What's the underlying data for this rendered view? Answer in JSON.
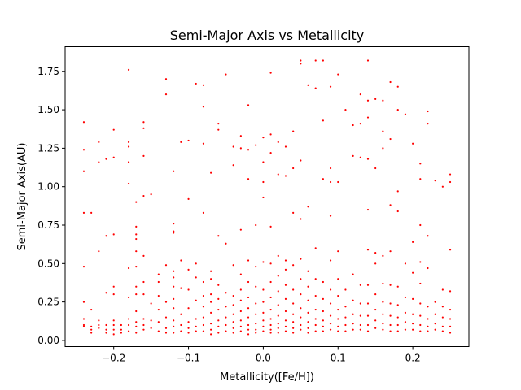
{
  "chart_data": {
    "type": "scatter",
    "title": "Semi-Major Axis vs Metallicity",
    "xlabel": "Metallicity([Fe/H])",
    "ylabel": "Semi-Major Axis(AU)",
    "xlim": [
      -0.265,
      0.275
    ],
    "ylim": [
      -0.04,
      1.91
    ],
    "xticks": [
      -0.2,
      -0.1,
      0.0,
      0.1,
      0.2
    ],
    "xtick_labels": [
      "−0.2",
      "−0.1",
      "0.0",
      "0.1",
      "0.2"
    ],
    "yticks": [
      0.0,
      0.25,
      0.5,
      0.75,
      1.0,
      1.25,
      1.5,
      1.75
    ],
    "ytick_labels": [
      "0.00",
      "0.25",
      "0.50",
      "0.75",
      "1.00",
      "1.25",
      "1.50",
      "1.75"
    ],
    "grid": false,
    "marker_color": "#ff0000",
    "points": [
      [
        -0.24,
        1.42
      ],
      [
        -0.24,
        1.24
      ],
      [
        -0.24,
        1.1
      ],
      [
        -0.24,
        0.83
      ],
      [
        -0.24,
        0.48
      ],
      [
        -0.24,
        0.25
      ],
      [
        -0.24,
        0.14
      ],
      [
        -0.24,
        0.1
      ],
      [
        -0.24,
        0.09
      ],
      [
        -0.23,
        0.83
      ],
      [
        -0.23,
        0.2
      ],
      [
        -0.23,
        0.09
      ],
      [
        -0.23,
        0.07
      ],
      [
        -0.23,
        0.05
      ],
      [
        -0.22,
        1.29
      ],
      [
        -0.22,
        1.16
      ],
      [
        -0.22,
        0.58
      ],
      [
        -0.22,
        0.13
      ],
      [
        -0.22,
        0.1
      ],
      [
        -0.22,
        0.08
      ],
      [
        -0.21,
        1.18
      ],
      [
        -0.21,
        0.68
      ],
      [
        -0.21,
        0.31
      ],
      [
        -0.21,
        0.1
      ],
      [
        -0.21,
        0.07
      ],
      [
        -0.21,
        0.05
      ],
      [
        -0.2,
        1.37
      ],
      [
        -0.2,
        1.19
      ],
      [
        -0.2,
        0.69
      ],
      [
        -0.2,
        0.35
      ],
      [
        -0.2,
        0.3
      ],
      [
        -0.2,
        0.13
      ],
      [
        -0.2,
        0.1
      ],
      [
        -0.2,
        0.07
      ],
      [
        -0.2,
        0.04
      ],
      [
        -0.19,
        0.1
      ],
      [
        -0.19,
        0.07
      ],
      [
        -0.19,
        0.05
      ],
      [
        -0.18,
        1.76
      ],
      [
        -0.18,
        1.29
      ],
      [
        -0.18,
        1.26
      ],
      [
        -0.18,
        1.16
      ],
      [
        -0.18,
        1.02
      ],
      [
        -0.18,
        0.47
      ],
      [
        -0.18,
        0.28
      ],
      [
        -0.18,
        0.14
      ],
      [
        -0.18,
        0.1
      ],
      [
        -0.18,
        0.06
      ],
      [
        -0.17,
        0.9
      ],
      [
        -0.17,
        0.74
      ],
      [
        -0.17,
        0.69
      ],
      [
        -0.17,
        0.66
      ],
      [
        -0.17,
        0.58
      ],
      [
        -0.17,
        0.48
      ],
      [
        -0.17,
        0.35
      ],
      [
        -0.17,
        0.3
      ],
      [
        -0.17,
        0.19
      ],
      [
        -0.17,
        0.12
      ],
      [
        -0.17,
        0.09
      ],
      [
        -0.17,
        0.05
      ],
      [
        -0.16,
        1.42
      ],
      [
        -0.16,
        1.38
      ],
      [
        -0.16,
        1.2
      ],
      [
        -0.16,
        0.94
      ],
      [
        -0.16,
        0.55
      ],
      [
        -0.16,
        0.38
      ],
      [
        -0.16,
        0.3
      ],
      [
        -0.16,
        0.14
      ],
      [
        -0.16,
        0.1
      ],
      [
        -0.16,
        0.07
      ],
      [
        -0.15,
        0.95
      ],
      [
        -0.15,
        0.24
      ],
      [
        -0.15,
        0.13
      ],
      [
        -0.15,
        0.08
      ],
      [
        -0.14,
        0.43
      ],
      [
        -0.14,
        0.38
      ],
      [
        -0.14,
        0.29
      ],
      [
        -0.14,
        0.2
      ],
      [
        -0.14,
        0.12
      ],
      [
        -0.14,
        0.06
      ],
      [
        -0.13,
        1.7
      ],
      [
        -0.13,
        1.6
      ],
      [
        -0.13,
        0.49
      ],
      [
        -0.13,
        0.25
      ],
      [
        -0.13,
        0.15
      ],
      [
        -0.13,
        0.08
      ],
      [
        -0.13,
        0.05
      ],
      [
        -0.12,
        1.1
      ],
      [
        -0.12,
        0.76
      ],
      [
        -0.12,
        0.71
      ],
      [
        -0.12,
        0.7
      ],
      [
        -0.12,
        0.45
      ],
      [
        -0.12,
        0.41
      ],
      [
        -0.12,
        0.35
      ],
      [
        -0.12,
        0.27
      ],
      [
        -0.12,
        0.21
      ],
      [
        -0.12,
        0.13
      ],
      [
        -0.12,
        0.09
      ],
      [
        -0.12,
        0.05
      ],
      [
        -0.11,
        1.29
      ],
      [
        -0.11,
        0.52
      ],
      [
        -0.11,
        0.34
      ],
      [
        -0.11,
        0.17
      ],
      [
        -0.11,
        0.1
      ],
      [
        -0.11,
        0.06
      ],
      [
        -0.1,
        1.3
      ],
      [
        -0.1,
        0.92
      ],
      [
        -0.1,
        0.46
      ],
      [
        -0.1,
        0.33
      ],
      [
        -0.1,
        0.21
      ],
      [
        -0.1,
        0.12
      ],
      [
        -0.1,
        0.08
      ],
      [
        -0.1,
        0.05
      ],
      [
        -0.09,
        1.67
      ],
      [
        -0.09,
        0.5
      ],
      [
        -0.09,
        0.41
      ],
      [
        -0.09,
        0.26
      ],
      [
        -0.09,
        0.14
      ],
      [
        -0.09,
        0.09
      ],
      [
        -0.09,
        0.06
      ],
      [
        -0.08,
        1.66
      ],
      [
        -0.08,
        1.52
      ],
      [
        -0.08,
        1.28
      ],
      [
        -0.08,
        0.83
      ],
      [
        -0.08,
        0.38
      ],
      [
        -0.08,
        0.29
      ],
      [
        -0.08,
        0.22
      ],
      [
        -0.08,
        0.15
      ],
      [
        -0.08,
        0.1
      ],
      [
        -0.08,
        0.06
      ],
      [
        -0.07,
        1.09
      ],
      [
        -0.07,
        0.45
      ],
      [
        -0.07,
        0.4
      ],
      [
        -0.07,
        0.3
      ],
      [
        -0.07,
        0.25
      ],
      [
        -0.07,
        0.18
      ],
      [
        -0.07,
        0.11
      ],
      [
        -0.07,
        0.07
      ],
      [
        -0.07,
        0.04
      ],
      [
        -0.06,
        1.41
      ],
      [
        -0.06,
        1.37
      ],
      [
        -0.06,
        0.68
      ],
      [
        -0.06,
        0.36
      ],
      [
        -0.06,
        0.27
      ],
      [
        -0.06,
        0.2
      ],
      [
        -0.06,
        0.13
      ],
      [
        -0.06,
        0.09
      ],
      [
        -0.06,
        0.05
      ],
      [
        -0.05,
        1.73
      ],
      [
        -0.05,
        0.63
      ],
      [
        -0.05,
        0.31
      ],
      [
        -0.05,
        0.22
      ],
      [
        -0.05,
        0.15
      ],
      [
        -0.05,
        0.1
      ],
      [
        -0.05,
        0.06
      ],
      [
        -0.04,
        1.26
      ],
      [
        -0.04,
        1.14
      ],
      [
        -0.04,
        0.49
      ],
      [
        -0.04,
        0.29
      ],
      [
        -0.04,
        0.23
      ],
      [
        -0.04,
        0.17
      ],
      [
        -0.04,
        0.12
      ],
      [
        -0.04,
        0.08
      ],
      [
        -0.04,
        0.05
      ],
      [
        -0.03,
        1.33
      ],
      [
        -0.03,
        1.25
      ],
      [
        -0.03,
        0.72
      ],
      [
        -0.03,
        0.43
      ],
      [
        -0.03,
        0.33
      ],
      [
        -0.03,
        0.26
      ],
      [
        -0.03,
        0.19
      ],
      [
        -0.03,
        0.13
      ],
      [
        -0.03,
        0.09
      ],
      [
        -0.03,
        0.06
      ],
      [
        -0.02,
        1.53
      ],
      [
        -0.02,
        1.24
      ],
      [
        -0.02,
        1.05
      ],
      [
        -0.02,
        0.52
      ],
      [
        -0.02,
        0.38
      ],
      [
        -0.02,
        0.28
      ],
      [
        -0.02,
        0.21
      ],
      [
        -0.02,
        0.15
      ],
      [
        -0.02,
        0.1
      ],
      [
        -0.02,
        0.07
      ],
      [
        -0.02,
        0.04
      ],
      [
        -0.01,
        1.27
      ],
      [
        -0.01,
        0.75
      ],
      [
        -0.01,
        0.48
      ],
      [
        -0.01,
        0.35
      ],
      [
        -0.01,
        0.24
      ],
      [
        -0.01,
        0.17
      ],
      [
        -0.01,
        0.11
      ],
      [
        -0.01,
        0.07
      ],
      [
        -0.01,
        0.05
      ],
      [
        0.0,
        1.32
      ],
      [
        0.0,
        1.16
      ],
      [
        0.0,
        1.03
      ],
      [
        0.0,
        0.93
      ],
      [
        0.0,
        0.51
      ],
      [
        0.0,
        0.33
      ],
      [
        0.0,
        0.25
      ],
      [
        0.0,
        0.18
      ],
      [
        0.0,
        0.13
      ],
      [
        0.0,
        0.09
      ],
      [
        0.0,
        0.06
      ],
      [
        0.01,
        1.74
      ],
      [
        0.01,
        1.34
      ],
      [
        0.01,
        1.22
      ],
      [
        0.01,
        0.74
      ],
      [
        0.01,
        0.5
      ],
      [
        0.01,
        0.38
      ],
      [
        0.01,
        0.28
      ],
      [
        0.01,
        0.2
      ],
      [
        0.01,
        0.14
      ],
      [
        0.01,
        0.1
      ],
      [
        0.01,
        0.07
      ],
      [
        0.01,
        0.05
      ],
      [
        0.02,
        1.29
      ],
      [
        0.02,
        1.08
      ],
      [
        0.02,
        0.55
      ],
      [
        0.02,
        0.42
      ],
      [
        0.02,
        0.32
      ],
      [
        0.02,
        0.23
      ],
      [
        0.02,
        0.16
      ],
      [
        0.02,
        0.11
      ],
      [
        0.02,
        0.08
      ],
      [
        0.02,
        0.05
      ],
      [
        0.03,
        1.26
      ],
      [
        0.03,
        1.07
      ],
      [
        0.03,
        0.52
      ],
      [
        0.03,
        0.46
      ],
      [
        0.03,
        0.36
      ],
      [
        0.03,
        0.27
      ],
      [
        0.03,
        0.19
      ],
      [
        0.03,
        0.13
      ],
      [
        0.03,
        0.09
      ],
      [
        0.03,
        0.06
      ],
      [
        0.04,
        1.36
      ],
      [
        0.04,
        1.12
      ],
      [
        0.04,
        0.83
      ],
      [
        0.04,
        0.49
      ],
      [
        0.04,
        0.33
      ],
      [
        0.04,
        0.24
      ],
      [
        0.04,
        0.17
      ],
      [
        0.04,
        0.12
      ],
      [
        0.04,
        0.08
      ],
      [
        0.04,
        0.05
      ],
      [
        0.05,
        1.82
      ],
      [
        0.05,
        1.8
      ],
      [
        0.05,
        1.17
      ],
      [
        0.05,
        0.79
      ],
      [
        0.05,
        0.53
      ],
      [
        0.05,
        0.4
      ],
      [
        0.05,
        0.3
      ],
      [
        0.05,
        0.21
      ],
      [
        0.05,
        0.15
      ],
      [
        0.05,
        0.1
      ],
      [
        0.05,
        0.07
      ],
      [
        0.06,
        1.66
      ],
      [
        0.06,
        0.87
      ],
      [
        0.06,
        0.45
      ],
      [
        0.06,
        0.35
      ],
      [
        0.06,
        0.26
      ],
      [
        0.06,
        0.18
      ],
      [
        0.06,
        0.12
      ],
      [
        0.06,
        0.08
      ],
      [
        0.06,
        0.05
      ],
      [
        0.07,
        1.82
      ],
      [
        0.07,
        1.64
      ],
      [
        0.07,
        0.6
      ],
      [
        0.07,
        0.4
      ],
      [
        0.07,
        0.29
      ],
      [
        0.07,
        0.2
      ],
      [
        0.07,
        0.14
      ],
      [
        0.07,
        0.1
      ],
      [
        0.07,
        0.06
      ],
      [
        0.08,
        1.82
      ],
      [
        0.08,
        1.43
      ],
      [
        0.08,
        1.05
      ],
      [
        0.08,
        0.38
      ],
      [
        0.08,
        0.27
      ],
      [
        0.08,
        0.19
      ],
      [
        0.08,
        0.13
      ],
      [
        0.08,
        0.09
      ],
      [
        0.08,
        0.06
      ],
      [
        0.09,
        1.65
      ],
      [
        0.09,
        1.12
      ],
      [
        0.09,
        1.03
      ],
      [
        0.09,
        0.81
      ],
      [
        0.09,
        0.52
      ],
      [
        0.09,
        0.33
      ],
      [
        0.09,
        0.24
      ],
      [
        0.09,
        0.16
      ],
      [
        0.09,
        0.11
      ],
      [
        0.09,
        0.07
      ],
      [
        0.1,
        1.73
      ],
      [
        0.1,
        1.03
      ],
      [
        0.1,
        0.58
      ],
      [
        0.1,
        0.4
      ],
      [
        0.1,
        0.29
      ],
      [
        0.1,
        0.2
      ],
      [
        0.1,
        0.14
      ],
      [
        0.1,
        0.09
      ],
      [
        0.1,
        0.06
      ],
      [
        0.11,
        1.5
      ],
      [
        0.11,
        0.33
      ],
      [
        0.11,
        0.22
      ],
      [
        0.11,
        0.15
      ],
      [
        0.11,
        0.1
      ],
      [
        0.11,
        0.06
      ],
      [
        0.12,
        1.4
      ],
      [
        0.12,
        1.2
      ],
      [
        0.12,
        0.43
      ],
      [
        0.12,
        0.26
      ],
      [
        0.12,
        0.17
      ],
      [
        0.12,
        0.11
      ],
      [
        0.12,
        0.07
      ],
      [
        0.13,
        1.6
      ],
      [
        0.13,
        1.41
      ],
      [
        0.13,
        1.19
      ],
      [
        0.13,
        0.36
      ],
      [
        0.13,
        0.24
      ],
      [
        0.13,
        0.16
      ],
      [
        0.13,
        0.1
      ],
      [
        0.13,
        0.07
      ],
      [
        0.14,
        1.82
      ],
      [
        0.14,
        1.56
      ],
      [
        0.14,
        1.45
      ],
      [
        0.14,
        1.18
      ],
      [
        0.14,
        0.85
      ],
      [
        0.14,
        0.59
      ],
      [
        0.14,
        0.36
      ],
      [
        0.14,
        0.24
      ],
      [
        0.14,
        0.16
      ],
      [
        0.14,
        0.1
      ],
      [
        0.14,
        0.06
      ],
      [
        0.15,
        1.57
      ],
      [
        0.15,
        1.12
      ],
      [
        0.15,
        0.57
      ],
      [
        0.15,
        0.5
      ],
      [
        0.15,
        0.3
      ],
      [
        0.15,
        0.2
      ],
      [
        0.15,
        0.13
      ],
      [
        0.15,
        0.08
      ],
      [
        0.16,
        1.56
      ],
      [
        0.16,
        1.36
      ],
      [
        0.16,
        1.25
      ],
      [
        0.16,
        0.55
      ],
      [
        0.16,
        0.37
      ],
      [
        0.16,
        0.25
      ],
      [
        0.16,
        0.17
      ],
      [
        0.16,
        0.11
      ],
      [
        0.16,
        0.07
      ],
      [
        0.17,
        1.68
      ],
      [
        0.17,
        1.31
      ],
      [
        0.17,
        0.88
      ],
      [
        0.17,
        0.58
      ],
      [
        0.17,
        0.36
      ],
      [
        0.17,
        0.24
      ],
      [
        0.17,
        0.16
      ],
      [
        0.17,
        0.1
      ],
      [
        0.17,
        0.06
      ],
      [
        0.18,
        1.65
      ],
      [
        0.18,
        1.5
      ],
      [
        0.18,
        0.97
      ],
      [
        0.18,
        0.84
      ],
      [
        0.18,
        0.35
      ],
      [
        0.18,
        0.23
      ],
      [
        0.18,
        0.15
      ],
      [
        0.18,
        0.1
      ],
      [
        0.18,
        0.06
      ],
      [
        0.19,
        1.47
      ],
      [
        0.19,
        0.5
      ],
      [
        0.19,
        0.28
      ],
      [
        0.19,
        0.18
      ],
      [
        0.19,
        0.12
      ],
      [
        0.19,
        0.07
      ],
      [
        0.2,
        1.28
      ],
      [
        0.2,
        0.64
      ],
      [
        0.2,
        0.44
      ],
      [
        0.2,
        0.27
      ],
      [
        0.2,
        0.17
      ],
      [
        0.2,
        0.11
      ],
      [
        0.2,
        0.07
      ],
      [
        0.21,
        1.15
      ],
      [
        0.21,
        1.05
      ],
      [
        0.21,
        0.75
      ],
      [
        0.21,
        0.51
      ],
      [
        0.21,
        0.37
      ],
      [
        0.21,
        0.24
      ],
      [
        0.21,
        0.16
      ],
      [
        0.21,
        0.1
      ],
      [
        0.21,
        0.06
      ],
      [
        0.22,
        1.49
      ],
      [
        0.22,
        1.41
      ],
      [
        0.22,
        0.68
      ],
      [
        0.22,
        0.47
      ],
      [
        0.22,
        0.22
      ],
      [
        0.22,
        0.14
      ],
      [
        0.22,
        0.09
      ],
      [
        0.22,
        0.06
      ],
      [
        0.23,
        1.04
      ],
      [
        0.23,
        0.25
      ],
      [
        0.23,
        0.17
      ],
      [
        0.23,
        0.11
      ],
      [
        0.23,
        0.07
      ],
      [
        0.24,
        1.0
      ],
      [
        0.24,
        0.33
      ],
      [
        0.24,
        0.22
      ],
      [
        0.24,
        0.15
      ],
      [
        0.24,
        0.09
      ],
      [
        0.24,
        0.06
      ],
      [
        0.25,
        1.08
      ],
      [
        0.25,
        1.03
      ],
      [
        0.25,
        0.59
      ],
      [
        0.25,
        0.32
      ],
      [
        0.25,
        0.2
      ],
      [
        0.25,
        0.14
      ],
      [
        0.25,
        0.09
      ],
      [
        0.25,
        0.05
      ]
    ]
  }
}
